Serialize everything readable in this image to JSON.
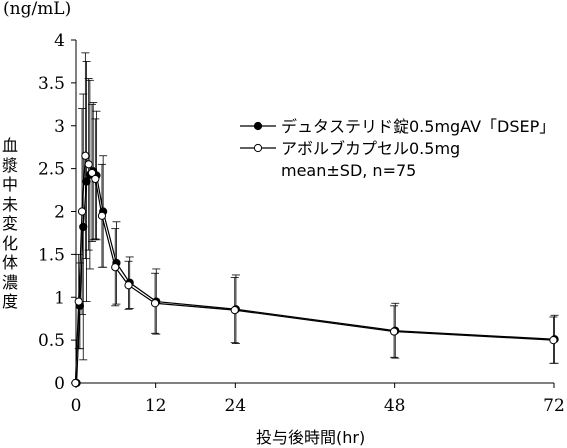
{
  "chart_data": {
    "type": "line",
    "unit_label": "(ng/mL)",
    "ylabel": "血漿中未変化体濃度",
    "xlabel": "投与後時間(hr)",
    "xlim": [
      0,
      72
    ],
    "ylim": [
      0,
      4
    ],
    "x_ticks": [
      0,
      12,
      24,
      48,
      72
    ],
    "y_ticks": [
      0,
      0.5,
      1,
      1.5,
      2,
      2.5,
      3,
      3.5,
      4
    ],
    "series": [
      {
        "name": "デュタステリド錠0.5mgAV「DSEP」",
        "marker": "filled-circle",
        "color": "#000000",
        "x": [
          0,
          0.5,
          1,
          1.5,
          2,
          2.5,
          3,
          4,
          6,
          8,
          12,
          24,
          48,
          72
        ],
        "y": [
          0.0,
          0.9,
          1.82,
          2.35,
          2.43,
          2.47,
          2.42,
          2.0,
          1.4,
          1.17,
          0.95,
          0.86,
          0.61,
          0.51
        ],
        "sd": [
          0,
          0.5,
          1.55,
          1.4,
          1.1,
          0.8,
          0.75,
          0.65,
          0.48,
          0.3,
          0.38,
          0.4,
          0.32,
          0.28
        ]
      },
      {
        "name": "アボルブカプセル0.5mg",
        "marker": "open-circle",
        "color": "#000000",
        "x": [
          0,
          0.5,
          1,
          1.5,
          2,
          2.5,
          3,
          4,
          6,
          8,
          12,
          24,
          48,
          72
        ],
        "y": [
          0.0,
          0.95,
          2.0,
          2.65,
          2.55,
          2.45,
          2.38,
          1.95,
          1.35,
          1.14,
          0.93,
          0.85,
          0.6,
          0.5
        ],
        "sd": [
          0,
          0.55,
          1.2,
          1.2,
          1.0,
          0.8,
          0.7,
          0.6,
          0.45,
          0.28,
          0.35,
          0.38,
          0.3,
          0.27
        ]
      }
    ],
    "legend_note": "mean±SD, n=75",
    "legend_position": "top-right"
  }
}
